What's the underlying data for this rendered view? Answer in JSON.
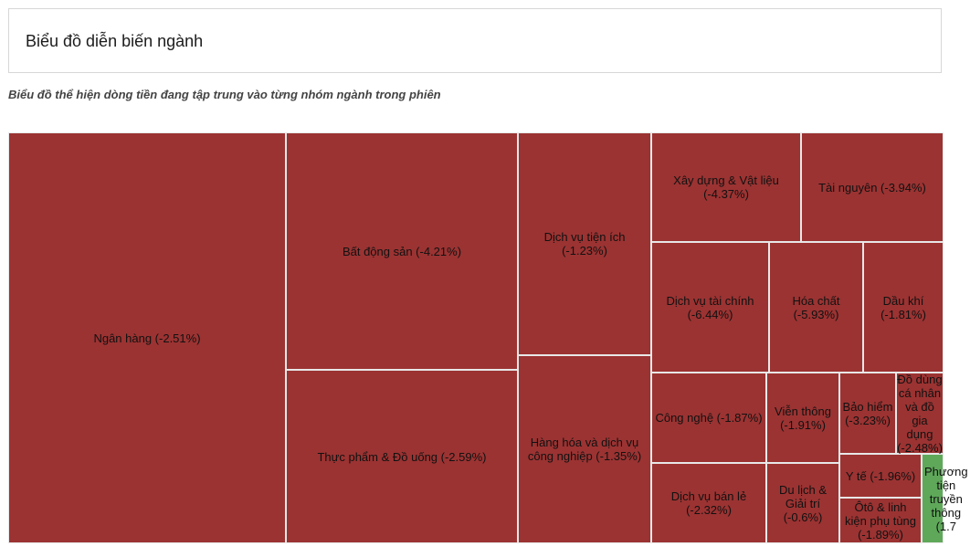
{
  "header": {
    "title": "Biểu đồ diễn biến ngành",
    "subtitle": "Biểu đồ thể hiện dòng tiền đang tập trung vào từng nhóm ngành trong phiên"
  },
  "colors": {
    "negative": "#9b3332",
    "positive": "#5fa85a"
  },
  "chart_data": {
    "type": "treemap",
    "items": [
      {
        "name": "Ngân hàng",
        "change": -2.51,
        "label": "Ngân hàng (-2.51%)"
      },
      {
        "name": "Bất động sản",
        "change": -4.21,
        "label": "Bất động sản (-4.21%)"
      },
      {
        "name": "Thực phẩm & Đồ uống",
        "change": -2.59,
        "label": "Thực phẩm & Đồ uống (-2.59%)"
      },
      {
        "name": "Dịch vụ tiện ích",
        "change": -1.23,
        "label": "Dịch vụ tiện ích (-1.23%)"
      },
      {
        "name": "Hàng hóa và dịch vụ công nghiệp",
        "change": -1.35,
        "label": "Hàng hóa và dịch vụ công nghiệp (-1.35%)"
      },
      {
        "name": "Xây dựng & Vật liệu",
        "change": -4.37,
        "label": "Xây dựng & Vật liệu (-4.37%)"
      },
      {
        "name": "Tài nguyên",
        "change": -3.94,
        "label": "Tài nguyên (-3.94%)"
      },
      {
        "name": "Dịch vụ tài chính",
        "change": -6.44,
        "label": "Dịch vụ tài chính (-6.44%)"
      },
      {
        "name": "Hóa chất",
        "change": -5.93,
        "label": "Hóa chất (-5.93%)"
      },
      {
        "name": "Dầu khí",
        "change": -1.81,
        "label": "Dầu khí (-1.81%)"
      },
      {
        "name": "Công nghệ",
        "change": -1.87,
        "label": "Công nghệ (-1.87%)"
      },
      {
        "name": "Viễn thông",
        "change": -1.91,
        "label": "Viễn thông (-1.91%)"
      },
      {
        "name": "Bảo hiểm",
        "change": -3.23,
        "label": "Bảo hiểm (-3.23%)"
      },
      {
        "name": "Đồ dùng cá nhân và đồ gia dụng",
        "change": -2.48,
        "label": "Đồ dùng cá nhân và đồ gia dụng (-2.48%)"
      },
      {
        "name": "Dịch vụ bán lẻ",
        "change": -2.32,
        "label": "Dịch vụ bán lẻ (-2.32%)"
      },
      {
        "name": "Du lịch & Giải trí",
        "change": -0.6,
        "label": "Du lịch & Giải trí (-0.6%)"
      },
      {
        "name": "Y tế",
        "change": -1.96,
        "label": "Y tế (-1.96%)"
      },
      {
        "name": "Ôtô & linh kiện phụ tùng",
        "change": -1.89,
        "label": "Ôtô & linh kiện phụ tùng (-1.89%)"
      },
      {
        "name": "Phương tiện truyền thông",
        "change": 1.7,
        "label": "Phương tiện truyền thông (1.7"
      }
    ]
  }
}
